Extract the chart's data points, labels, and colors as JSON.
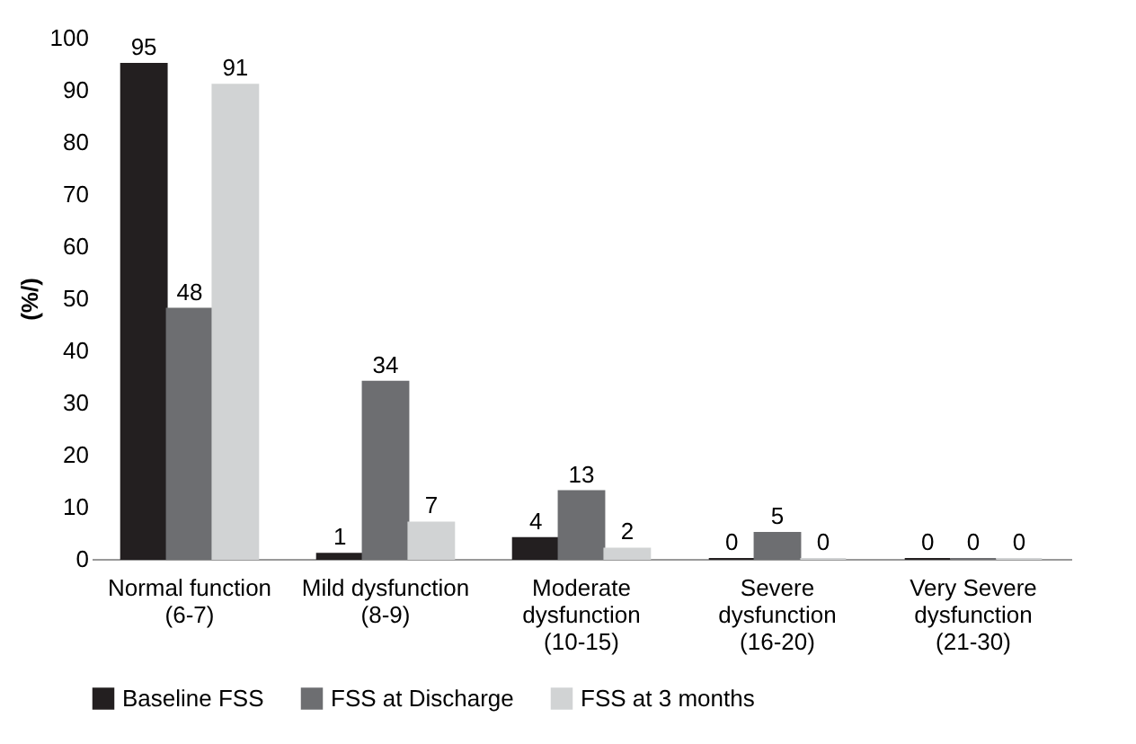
{
  "chart_data": {
    "type": "bar",
    "ylabel": "(%/)",
    "categories": [
      "Normal function (6-7)",
      "Mild dysfunction (8-9)",
      "Moderate dysfunction (10-15)",
      "Severe dysfunction (16-20)",
      "Very Severe dysfunction (21-30)"
    ],
    "series": [
      {
        "name": "Baseline FSS",
        "color": "#231f20",
        "values": [
          95,
          1,
          4,
          0,
          0
        ]
      },
      {
        "name": "FSS at Discharge",
        "color": "#6d6e71",
        "values": [
          48,
          34,
          13,
          5,
          0
        ]
      },
      {
        "name": "FSS at 3 months",
        "color": "#d1d3d4",
        "values": [
          91,
          7,
          2,
          0,
          0
        ]
      }
    ],
    "ylim": [
      0,
      100
    ],
    "yticks": [
      0,
      10,
      20,
      30,
      40,
      50,
      60,
      70,
      80,
      90,
      100
    ],
    "data_labels": true,
    "grid": false,
    "legend": "bottom"
  }
}
